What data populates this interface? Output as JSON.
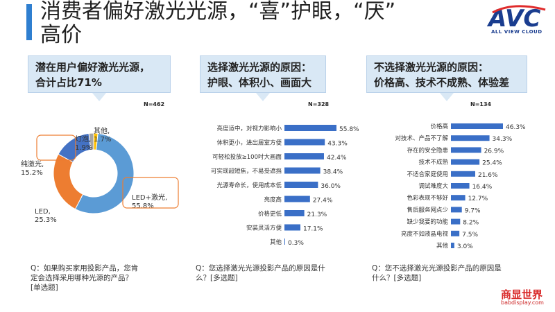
{
  "header": {
    "title_line1": "消费者偏好激光光源，“喜”护眼，“厌”",
    "title_line2": "高价",
    "logo_text": "AVC",
    "logo_sub": "ALL VIEW CLOUD"
  },
  "colors": {
    "accent": "#2f7fd0",
    "bar": "#3a6fc7",
    "panel": "#d9e8f5"
  },
  "panels": [
    {
      "line1": "潜在用户偏好激光光源，",
      "line2": "合计占比71%",
      "n": "N=462",
      "question": [
        "Q：如果购买家用投影产品，您肯",
        "定会选择采用哪种光源的产品？",
        "[单选题]"
      ]
    },
    {
      "line1": "选择激光光源的原因：",
      "line2": "护眼、体积小、画面大",
      "n": "N=328",
      "question": [
        "Q：您选择激光光源投影产品的原因是什",
        "么？[多选题]"
      ]
    },
    {
      "line1": "不选择激光光源的原因：",
      "line2": "价格高、技术不成熟、体验差",
      "n": "N=134",
      "question": [
        "Q：您不选择激光光源投影产品的原因是",
        "什么？[多选题]"
      ]
    }
  ],
  "watermark": {
    "line1": "商显世界",
    "line2": "babdisplay.com"
  },
  "chart_data": [
    {
      "type": "pie",
      "categories": [
        "LED+激光",
        "LED",
        "纯激光",
        "灯泡",
        "其他"
      ],
      "values": [
        55.8,
        25.3,
        15.2,
        1.9,
        1.7
      ],
      "labels": [
        "LED+激光, 55.8%",
        "LED, 25.3%",
        "纯激光, 15.2%",
        "灯泡, 1.9%",
        "其他, 1.7%"
      ],
      "colors": [
        "#5b9bd5",
        "#ed7d31",
        "#4472c4",
        "#a5a5a5",
        "#ffc000"
      ]
    },
    {
      "type": "bar",
      "categories": [
        "亮度适中，对视力影响小",
        "体积更小，进出居室方便",
        "可轻松投放≥100吋大画面",
        "可实现超短焦，不易受遮挡",
        "光源寿命长，使用成本低",
        "亮度高",
        "价格更低",
        "安装灵活方便",
        "其他"
      ],
      "values": [
        55.8,
        43.3,
        42.4,
        38.4,
        36.0,
        27.4,
        21.3,
        17.1,
        0.3
      ],
      "labels": [
        "55.8%",
        "43.3%",
        "42.4%",
        "38.4%",
        "36.0%",
        "27.4%",
        "21.3%",
        "17.1%",
        "0.3%"
      ]
    },
    {
      "type": "bar",
      "categories": [
        "价格高",
        "对技术、产品不了解",
        "存在的安全隐患",
        "技术不成熟",
        "不适合家庭使用",
        "调试难度大",
        "色彩表现不够好",
        "售后服务网点少",
        "缺少我要的功能",
        "亮度不如液晶电视",
        "其他"
      ],
      "values": [
        46.3,
        34.3,
        26.9,
        25.4,
        21.6,
        16.4,
        12.7,
        9.7,
        8.2,
        7.5,
        3.0
      ],
      "labels": [
        "46.3%",
        "34.3%",
        "26.9%",
        "25.4%",
        "21.6%",
        "16.4%",
        "12.7%",
        "9.7%",
        "8.2%",
        "7.5%",
        "3.0%"
      ]
    }
  ]
}
